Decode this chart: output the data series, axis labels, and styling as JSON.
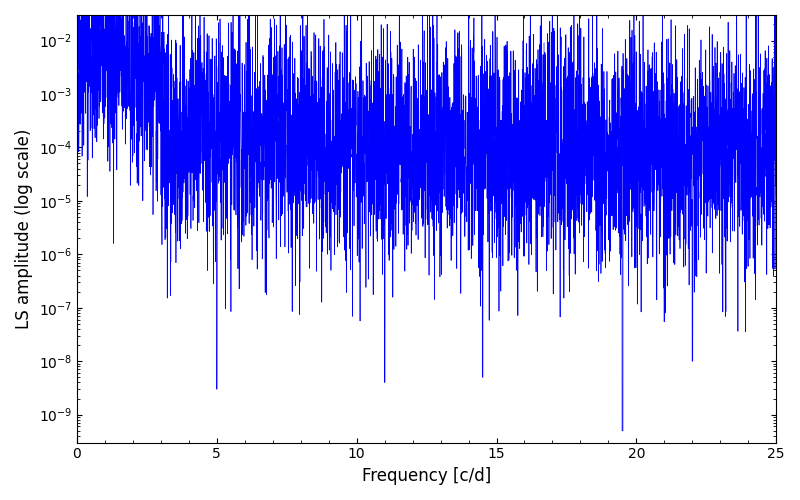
{
  "title": "",
  "xlabel": "Frequency [c/d]",
  "ylabel": "LS amplitude (log scale)",
  "xlim": [
    0,
    25
  ],
  "ylim": [
    3e-10,
    0.03
  ],
  "line_color": "#0000ff",
  "background_color": "#ffffff",
  "figsize": [
    8.0,
    5.0
  ],
  "dpi": 100,
  "n_points": 5000,
  "seed": 42,
  "freq_max": 25.0,
  "base_amplitude": 0.0001,
  "peak_freq_max": 3.0,
  "peak_amplitude": 0.01,
  "noise_floor": 0.0001,
  "deep_dip_freq": 19.5,
  "deep_dip_val": 5e-10
}
